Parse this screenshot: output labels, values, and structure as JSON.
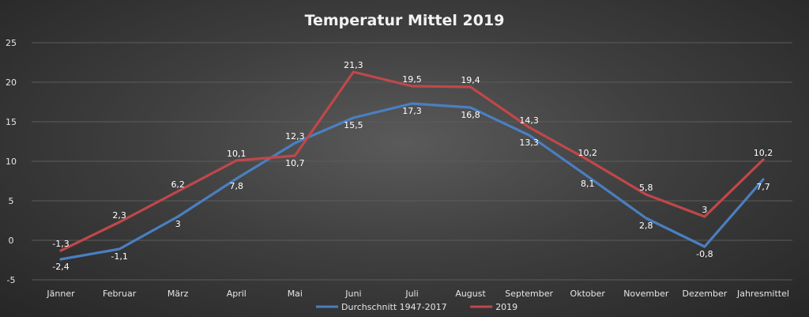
{
  "chart_data": {
    "type": "line",
    "title": "Temperatur Mittel 2019",
    "xlabel": "",
    "ylabel": "",
    "ylim": [
      -5,
      25
    ],
    "yticks": [
      "-5",
      "0",
      "5",
      "10",
      "15",
      "20",
      "25"
    ],
    "grid": true,
    "legend_position": "bottom",
    "categories": [
      "Jänner",
      "Februar",
      "März",
      "April",
      "Mai",
      "Juni",
      "Juli",
      "August",
      "September",
      "Oktober",
      "November",
      "Dezember",
      "Jahresmittel"
    ],
    "series": [
      {
        "name": "Durchschnitt 1947-2017",
        "color": "#4a7fc1",
        "values": [
          -2.4,
          -1.1,
          3,
          7.8,
          12.3,
          15.5,
          17.3,
          16.8,
          13.3,
          8.1,
          2.8,
          -0.8,
          7.7
        ],
        "labels": [
          "-2,4",
          "-1,1",
          "3",
          "7,8",
          "12,3",
          "15,5",
          "17,3",
          "16,8",
          "13,3",
          "8,1",
          "2,8",
          "-0,8",
          "7,7"
        ]
      },
      {
        "name": "2019",
        "color": "#c0474a",
        "values": [
          -1.3,
          2.3,
          6.2,
          10.1,
          10.7,
          21.3,
          19.5,
          19.4,
          14.3,
          10.2,
          5.8,
          3,
          10.2
        ],
        "labels": [
          "-1,3",
          "2,3",
          "6,2",
          "10,1",
          "10,7",
          "21,3",
          "19,5",
          "19,4",
          "14,3",
          "10,2",
          "5,8",
          "3",
          "10,2"
        ]
      }
    ]
  }
}
